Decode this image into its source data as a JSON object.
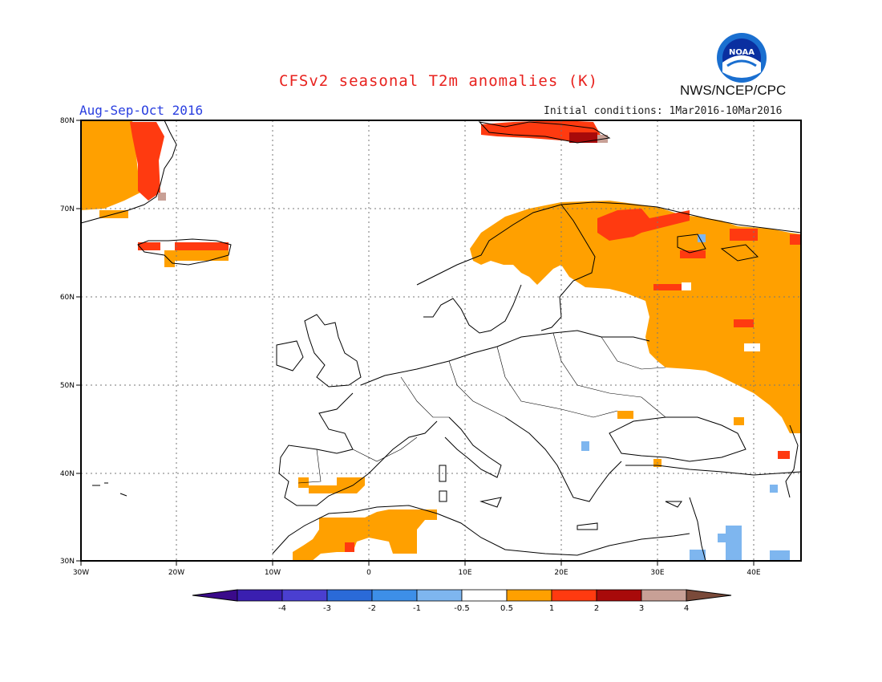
{
  "header": {
    "title": "CFSv2 seasonal T2m anomalies (K)",
    "period": "Aug-Sep-Oct 2016",
    "initial_conditions": "Initial conditions: 1Mar2016-10Mar2016",
    "organization": "NWS/NCEP/CPC",
    "logo_text": "NOAA"
  },
  "map": {
    "lat_ticks": [
      "80N",
      "70N",
      "60N",
      "50N",
      "40N",
      "30N"
    ],
    "lon_ticks": [
      "30W",
      "20W",
      "10W",
      "0",
      "10E",
      "20E",
      "30E",
      "40E"
    ]
  },
  "colorbar": {
    "labels": [
      "-4",
      "-3",
      "-2",
      "-1",
      "-0.5",
      "0.5",
      "1",
      "2",
      "3",
      "4"
    ],
    "colors": [
      "#3a1fb0",
      "#4a3fd0",
      "#2a6ad8",
      "#3d8fe8",
      "#7eb6ef",
      "#ffffff",
      "#ffa000",
      "#ff3a10",
      "#a80a0a",
      "#c8a096"
    ],
    "end_colors": [
      "#3a0a8a",
      "#7a4a3a"
    ]
  }
}
